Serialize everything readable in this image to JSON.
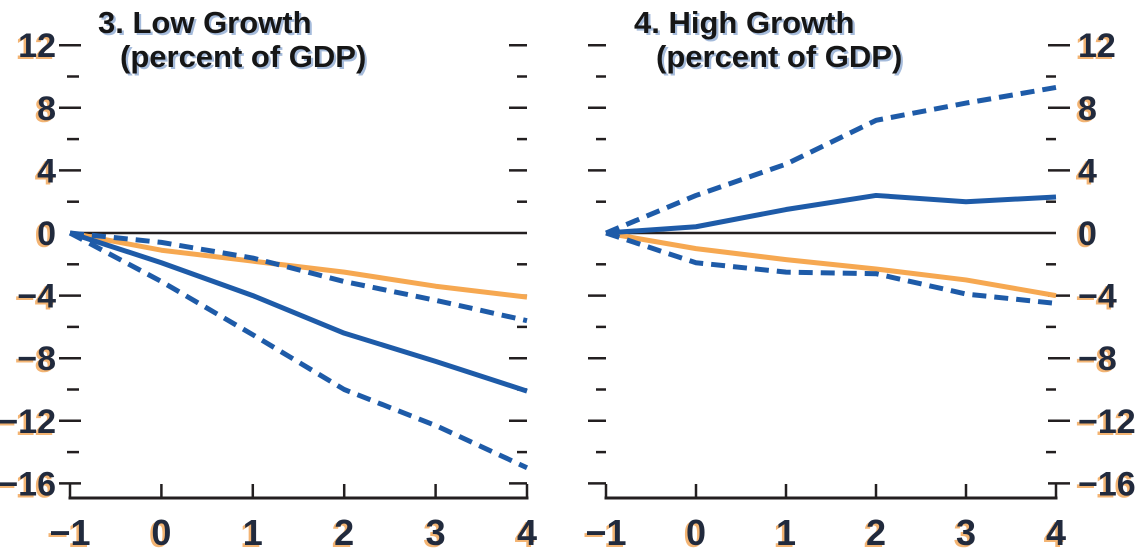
{
  "figure": {
    "background": "#ffffff",
    "colors": {
      "blue": "#1e5ba8",
      "orange": "#f6a851",
      "axis": "#231f20",
      "zero_line": "#231f20",
      "tick_label": "#212a3d",
      "tick_label_shadow": "#f09c45",
      "title": "#161616",
      "title_shadow": "#4d79b8"
    }
  },
  "chart_data": [
    {
      "type": "line",
      "panel_id": "low-growth",
      "title": "3. Low Growth",
      "subtitle": "(percent of GDP)",
      "x": [
        -1,
        0,
        1,
        2,
        3,
        4
      ],
      "xlim": [
        -1,
        4
      ],
      "ylim": [
        -16,
        12
      ],
      "x_ticks": [
        -1,
        0,
        1,
        2,
        3,
        4
      ],
      "y_major_ticks": [
        12,
        8,
        4,
        0,
        -4,
        -8,
        -12,
        -16
      ],
      "y_minor_ticks": [
        10,
        6,
        2,
        -2,
        -6,
        -10,
        -14
      ],
      "y_axis_side": "left",
      "zero_line": true,
      "grid": false,
      "legend": "none",
      "series": [
        {
          "name": "confidence-band-upper",
          "style": "dashed",
          "color_key": "blue",
          "values": [
            0,
            -0.6,
            -1.6,
            -3.1,
            -4.3,
            -5.6
          ]
        },
        {
          "name": "baseline-scenario",
          "style": "solid",
          "color_key": "orange",
          "values": [
            0,
            -1.1,
            -1.8,
            -2.5,
            -3.4,
            -4.1
          ]
        },
        {
          "name": "central-scenario",
          "style": "solid",
          "color_key": "blue",
          "values": [
            0,
            -1.9,
            -4.0,
            -6.4,
            -8.2,
            -10.1
          ]
        },
        {
          "name": "confidence-band-lower",
          "style": "dashed",
          "color_key": "blue",
          "values": [
            0,
            -3.1,
            -6.5,
            -10.0,
            -12.3,
            -15.0
          ]
        }
      ]
    },
    {
      "type": "line",
      "panel_id": "high-growth",
      "title": "4. High Growth",
      "subtitle": "(percent of GDP)",
      "x": [
        -1,
        0,
        1,
        2,
        3,
        4
      ],
      "xlim": [
        -1,
        4
      ],
      "ylim": [
        -16,
        12
      ],
      "x_ticks": [
        -1,
        0,
        1,
        2,
        3,
        4
      ],
      "y_major_ticks": [
        12,
        8,
        4,
        0,
        -4,
        -8,
        -12,
        -16
      ],
      "y_minor_ticks": [
        10,
        6,
        2,
        -2,
        -6,
        -10,
        -14
      ],
      "y_axis_side": "right",
      "zero_line": true,
      "grid": false,
      "legend": "none",
      "series": [
        {
          "name": "confidence-band-upper",
          "style": "dashed",
          "color_key": "blue",
          "values": [
            0,
            2.4,
            4.4,
            7.2,
            8.3,
            9.3
          ]
        },
        {
          "name": "baseline-scenario",
          "style": "solid",
          "color_key": "orange",
          "values": [
            0,
            -1.0,
            -1.7,
            -2.3,
            -3.0,
            -4.0
          ]
        },
        {
          "name": "central-scenario",
          "style": "solid",
          "color_key": "blue",
          "values": [
            0,
            0.4,
            1.5,
            2.4,
            2.0,
            2.3
          ]
        },
        {
          "name": "confidence-band-lower",
          "style": "dashed",
          "color_key": "blue",
          "values": [
            0,
            -1.9,
            -2.5,
            -2.6,
            -3.9,
            -4.5
          ]
        }
      ]
    }
  ]
}
